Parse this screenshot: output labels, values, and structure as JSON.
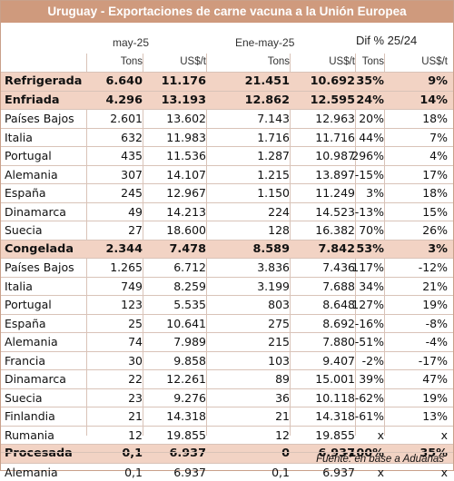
{
  "title": "Uruguay - Exportaciones de carne vacuna a la Unión Europea",
  "period_headers": {
    "month": "may-25",
    "ytd": "Ene-may-25",
    "dif": "Dif % 25/24"
  },
  "unit_headers": [
    "Tons",
    "US$/t",
    "Tons",
    "US$/t",
    "Tons",
    "US$/t"
  ],
  "rows": [
    {
      "label": "Refrigerada",
      "section": true,
      "values": [
        "6.640",
        "11.176",
        "21.451",
        "10.692",
        "35%",
        "9%"
      ]
    },
    {
      "label": "Enfriada",
      "section": true,
      "values": [
        "4.296",
        "13.193",
        "12.862",
        "12.595",
        "24%",
        "14%"
      ]
    },
    {
      "label": "Países Bajos",
      "section": false,
      "values": [
        "2.601",
        "13.602",
        "7.143",
        "12.963",
        "20%",
        "18%"
      ]
    },
    {
      "label": "Italia",
      "section": false,
      "values": [
        "632",
        "11.983",
        "1.716",
        "11.716",
        "44%",
        "7%"
      ]
    },
    {
      "label": "Portugal",
      "section": false,
      "values": [
        "435",
        "11.536",
        "1.287",
        "10.987",
        "296%",
        "4%"
      ]
    },
    {
      "label": "Alemania",
      "section": false,
      "values": [
        "307",
        "14.107",
        "1.215",
        "13.897",
        "-15%",
        "17%"
      ]
    },
    {
      "label": "España",
      "section": false,
      "values": [
        "245",
        "12.967",
        "1.150",
        "11.249",
        "3%",
        "18%"
      ]
    },
    {
      "label": "Dinamarca",
      "section": false,
      "values": [
        "49",
        "14.213",
        "224",
        "14.523",
        "-13%",
        "15%"
      ]
    },
    {
      "label": "Suecia",
      "section": false,
      "values": [
        "27",
        "18.600",
        "128",
        "16.382",
        "70%",
        "26%"
      ]
    },
    {
      "label": "Congelada",
      "section": true,
      "values": [
        "2.344",
        "7.478",
        "8.589",
        "7.842",
        "53%",
        "3%"
      ]
    },
    {
      "label": "Países Bajos",
      "section": false,
      "values": [
        "1.265",
        "6.712",
        "3.836",
        "7.436",
        "117%",
        "-12%"
      ]
    },
    {
      "label": "Italia",
      "section": false,
      "values": [
        "749",
        "8.259",
        "3.199",
        "7.688",
        "34%",
        "21%"
      ]
    },
    {
      "label": "Portugal",
      "section": false,
      "values": [
        "123",
        "5.535",
        "803",
        "8.648",
        "127%",
        "19%"
      ]
    },
    {
      "label": "España",
      "section": false,
      "values": [
        "25",
        "10.641",
        "275",
        "8.692",
        "-16%",
        "-8%"
      ]
    },
    {
      "label": "Alemania",
      "section": false,
      "values": [
        "74",
        "7.989",
        "215",
        "7.880",
        "-51%",
        "-4%"
      ]
    },
    {
      "label": "Francia",
      "section": false,
      "values": [
        "30",
        "9.858",
        "103",
        "9.407",
        "-2%",
        "-17%"
      ]
    },
    {
      "label": "Dinamarca",
      "section": false,
      "values": [
        "22",
        "12.261",
        "89",
        "15.001",
        "39%",
        "47%"
      ]
    },
    {
      "label": "Suecia",
      "section": false,
      "values": [
        "23",
        "9.276",
        "36",
        "10.118",
        "-62%",
        "19%"
      ]
    },
    {
      "label": "Finlandia",
      "section": false,
      "values": [
        "21",
        "14.318",
        "21",
        "14.318",
        "-61%",
        "13%"
      ]
    },
    {
      "label": "Rumania",
      "section": false,
      "values": [
        "12",
        "19.855",
        "12",
        "19.855",
        "x",
        "x"
      ]
    },
    {
      "label": "Procesada",
      "section": true,
      "values": [
        "0,1",
        "6.937",
        "0",
        "6.937",
        "-100%",
        "35%"
      ]
    },
    {
      "label": "Alemania",
      "section": false,
      "values": [
        "0,1",
        "6.937",
        "0,1",
        "6.937",
        "x",
        "x"
      ]
    }
  ],
  "footer": "Fuente: en base a Aduanas"
}
